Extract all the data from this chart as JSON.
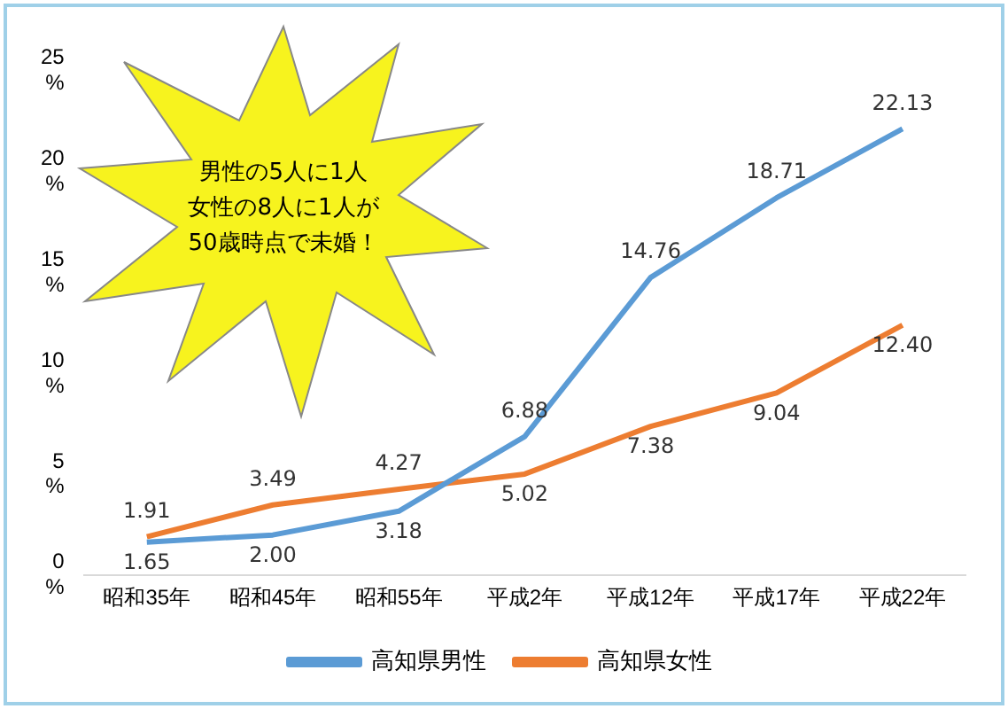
{
  "chart_data": {
    "type": "line",
    "categories": [
      "昭和35年",
      "昭和45年",
      "昭和55年",
      "平成2年",
      "平成12年",
      "平成17年",
      "平成22年"
    ],
    "series": [
      {
        "name": "高知県男性",
        "color": "#5b9bd5",
        "values": [
          1.65,
          2.0,
          3.18,
          6.88,
          14.76,
          18.71,
          22.13
        ],
        "value_labels": [
          "1.65",
          "2.00",
          "3.18",
          "6.88",
          "14.76",
          "18.71",
          "22.13"
        ]
      },
      {
        "name": "高知県女性",
        "color": "#ed7d31",
        "values": [
          1.91,
          3.49,
          4.27,
          5.02,
          7.38,
          9.04,
          12.4
        ],
        "value_labels": [
          "1.91",
          "3.49",
          "4.27",
          "5.02",
          "7.38",
          "9.04",
          "12.40"
        ]
      }
    ],
    "ylim": [
      0,
      25
    ],
    "yticks": [
      {
        "value": 0,
        "label": "0\n%"
      },
      {
        "value": 5,
        "label": "5\n%"
      },
      {
        "value": 10,
        "label": "10\n%"
      },
      {
        "value": 15,
        "label": "15\n%"
      },
      {
        "value": 20,
        "label": "20\n%"
      },
      {
        "value": 25,
        "label": "25\n%"
      }
    ],
    "grid": false,
    "legend": "bottom",
    "marker": "none",
    "line_style": "solid",
    "annotations": [
      "男性の5人に1人",
      "女性の8人に1人が",
      "50歳時点で未婚！"
    ]
  }
}
